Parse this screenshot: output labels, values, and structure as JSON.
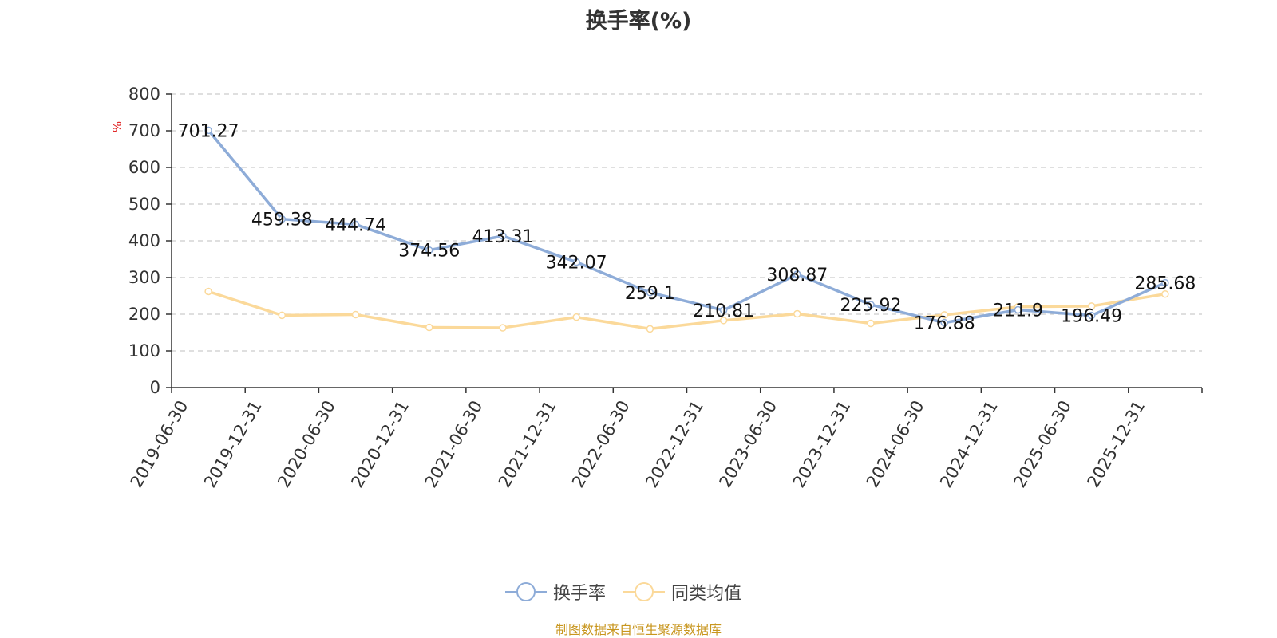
{
  "chart_data": {
    "type": "line",
    "title": "换手率(%)",
    "ylabel": "%",
    "xlabel": "",
    "ylim": [
      0,
      800
    ],
    "yticks": [
      0,
      100,
      200,
      300,
      400,
      500,
      600,
      700,
      800
    ],
    "grid": true,
    "legend_position": "bottom-center",
    "categories": [
      "2019-06-30",
      "2019-12-31",
      "2020-06-30",
      "2020-12-31",
      "2021-06-30",
      "2021-12-31",
      "2022-06-30",
      "2022-12-31",
      "2023-06-30",
      "2023-12-31",
      "2024-06-30",
      "2024-12-31",
      "2025-06-30",
      "2025-12-31"
    ],
    "series": [
      {
        "name": "换手率",
        "color": "#8eacd8",
        "show_labels": true,
        "values": [
          701.27,
          459.38,
          444.74,
          374.56,
          413.31,
          342.07,
          259.1,
          210.81,
          308.87,
          225.92,
          176.88,
          211.9,
          196.49,
          285.68
        ],
        "labels": [
          "701.27",
          "459.38",
          "444.74",
          "374.56",
          "413.31",
          "342.07",
          "259.1",
          "210.81",
          "308.87",
          "225.92",
          "176.88",
          "211.9",
          "196.49",
          "285.68"
        ]
      },
      {
        "name": "同类均值",
        "color": "#fbd99a",
        "show_labels": false,
        "values": [
          262,
          197,
          199,
          164,
          163,
          192,
          160,
          183,
          201,
          175,
          198,
          220,
          222,
          255
        ]
      }
    ]
  },
  "source_text": "制图数据来自恒生聚源数据库"
}
